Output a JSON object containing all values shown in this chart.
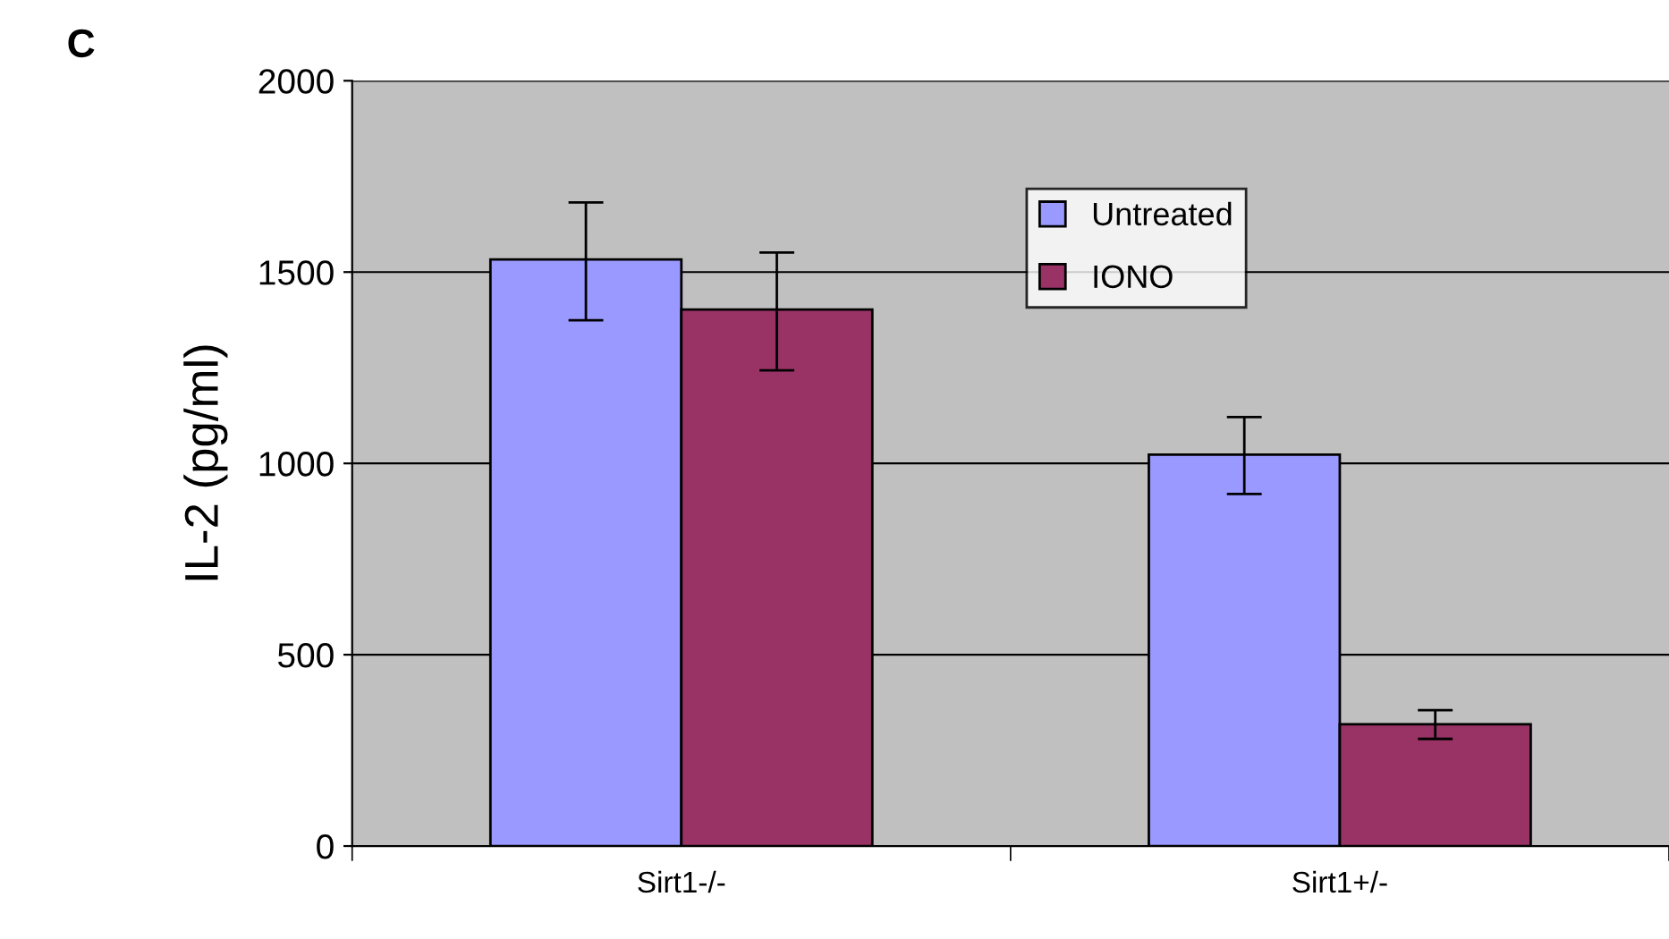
{
  "chart_data": {
    "type": "bar",
    "ylabel": "IL-2 (pg/ml)",
    "categories": [
      "Sirt1-/-",
      "Sirt1+/-"
    ],
    "series": [
      {
        "name": "Untreated",
        "color": "#9999ff",
        "values": [
          1533,
          1023
        ],
        "errors": [
          [
            1374,
            1682
          ],
          [
            920,
            1121
          ]
        ]
      },
      {
        "name": "IONO",
        "color": "#993366",
        "values": [
          1402,
          318
        ],
        "errors": [
          [
            1243,
            1551
          ],
          [
            280,
            355
          ]
        ]
      }
    ],
    "ylim": [
      0,
      2000
    ],
    "yticks": [
      0,
      500,
      1000,
      1500,
      2000
    ],
    "grid": "y",
    "legend": "top",
    "annotations": [
      "C"
    ]
  }
}
